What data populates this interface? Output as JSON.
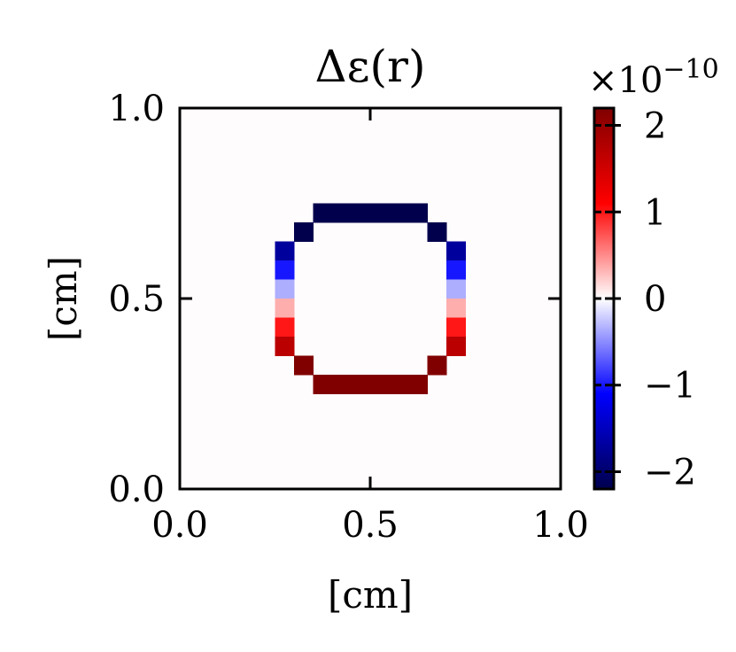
{
  "chart_data": {
    "type": "heatmap",
    "title": "Δε(r)",
    "xlabel": "[cm]",
    "ylabel": "[cm]",
    "xlim": [
      0.0,
      1.0
    ],
    "ylim": [
      0.0,
      1.0
    ],
    "xticks": [
      "0.0",
      "0.5",
      "1.0"
    ],
    "yticks": [
      "0.0",
      "0.5",
      "1.0"
    ],
    "grid": false,
    "colormap": "seismic",
    "background_value": 0,
    "colorbar": {
      "range": [
        -2.2,
        2.2
      ],
      "exponent_label": "×10",
      "exponent_power": "−10",
      "ticks": [
        {
          "value": 2,
          "label": "2"
        },
        {
          "value": 1,
          "label": "1"
        },
        {
          "value": 0,
          "label": "0"
        },
        {
          "value": -1,
          "label": "−1"
        },
        {
          "value": -2,
          "label": "−2"
        }
      ]
    },
    "cells": [
      {
        "x": [
          0.35,
          0.65
        ],
        "y": [
          0.7,
          0.75
        ],
        "value": -2.2
      },
      {
        "x": [
          0.3,
          0.35
        ],
        "y": [
          0.65,
          0.7
        ],
        "value": -2.2
      },
      {
        "x": [
          0.65,
          0.7
        ],
        "y": [
          0.65,
          0.7
        ],
        "value": -2.2
      },
      {
        "x": [
          0.25,
          0.3
        ],
        "y": [
          0.6,
          0.65
        ],
        "value": -1.7
      },
      {
        "x": [
          0.7,
          0.75
        ],
        "y": [
          0.6,
          0.65
        ],
        "value": -1.7
      },
      {
        "x": [
          0.25,
          0.3
        ],
        "y": [
          0.55,
          0.6
        ],
        "value": -1.0
      },
      {
        "x": [
          0.7,
          0.75
        ],
        "y": [
          0.55,
          0.6
        ],
        "value": -1.0
      },
      {
        "x": [
          0.25,
          0.3
        ],
        "y": [
          0.5,
          0.55
        ],
        "value": -0.35
      },
      {
        "x": [
          0.7,
          0.75
        ],
        "y": [
          0.5,
          0.55
        ],
        "value": -0.35
      },
      {
        "x": [
          0.25,
          0.3
        ],
        "y": [
          0.45,
          0.5
        ],
        "value": 0.35
      },
      {
        "x": [
          0.7,
          0.75
        ],
        "y": [
          0.45,
          0.5
        ],
        "value": 0.35
      },
      {
        "x": [
          0.25,
          0.3
        ],
        "y": [
          0.4,
          0.45
        ],
        "value": 1.0
      },
      {
        "x": [
          0.7,
          0.75
        ],
        "y": [
          0.4,
          0.45
        ],
        "value": 1.0
      },
      {
        "x": [
          0.25,
          0.3
        ],
        "y": [
          0.35,
          0.4
        ],
        "value": 1.7
      },
      {
        "x": [
          0.7,
          0.75
        ],
        "y": [
          0.35,
          0.4
        ],
        "value": 1.7
      },
      {
        "x": [
          0.3,
          0.35
        ],
        "y": [
          0.3,
          0.35
        ],
        "value": 2.2
      },
      {
        "x": [
          0.65,
          0.7
        ],
        "y": [
          0.3,
          0.35
        ],
        "value": 2.2
      },
      {
        "x": [
          0.35,
          0.65
        ],
        "y": [
          0.25,
          0.3
        ],
        "value": 2.2
      }
    ]
  }
}
